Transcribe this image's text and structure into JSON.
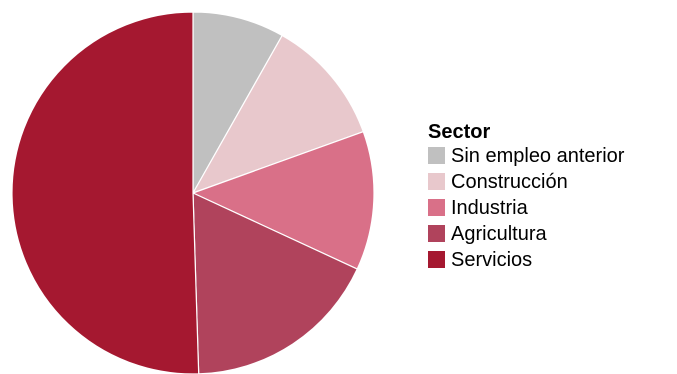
{
  "chart_data": {
    "type": "pie",
    "categories": [
      "Sin empleo anterior",
      "Construcción",
      "Industria",
      "Agricultura",
      "Servicios"
    ],
    "values": [
      8.2,
      11.3,
      12.4,
      17.6,
      50.5
    ],
    "colors": [
      "#c0c0c0",
      "#e8c8cc",
      "#d97088",
      "#b0435c",
      "#a51830"
    ],
    "start_angle_deg": 0,
    "direction": "clockwise",
    "legend": {
      "title": "Sector",
      "placement": "right"
    }
  }
}
